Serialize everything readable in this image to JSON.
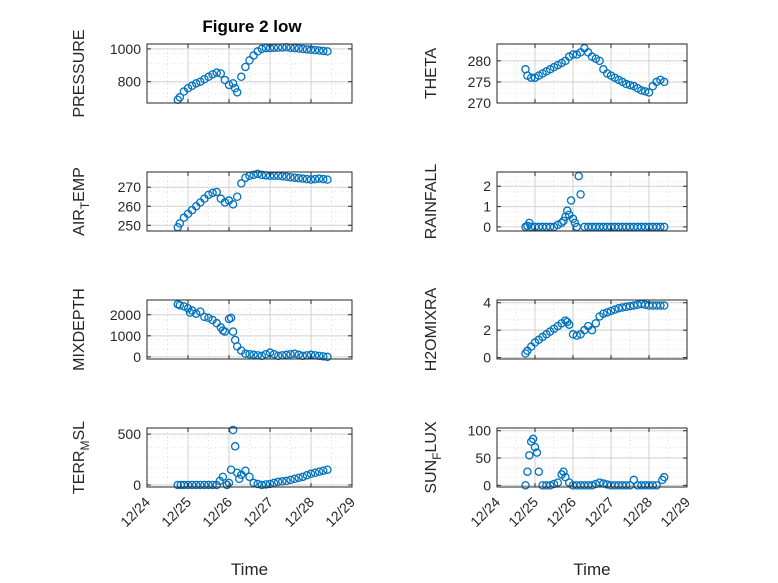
{
  "figure": {
    "title": "Figure 2 low",
    "colors": {
      "marker": "#0072BD",
      "axis": "#262626",
      "grid": "#d0d0d0"
    }
  },
  "chart_data": [
    {
      "type": "scatter",
      "ylabel": "PRESSURE",
      "xlabel": "",
      "ylim": [
        670,
        1030
      ],
      "yticks": [
        800,
        1000
      ],
      "x": [
        24.75,
        24.8,
        24.9,
        25.0,
        25.1,
        25.2,
        25.3,
        25.4,
        25.5,
        25.6,
        25.7,
        25.8,
        25.9,
        26.0,
        26.1,
        26.15,
        26.2,
        26.3,
        26.4,
        26.5,
        26.6,
        26.7,
        26.8,
        26.9,
        27.0,
        27.2,
        27.4,
        27.6,
        27.8,
        28.0,
        28.2,
        28.4
      ],
      "y": [
        690,
        705,
        740,
        760,
        775,
        790,
        800,
        815,
        830,
        845,
        855,
        850,
        810,
        780,
        790,
        760,
        735,
        830,
        890,
        930,
        960,
        985,
        1000,
        1005,
        1005,
        1008,
        1010,
        1005,
        1000,
        995,
        990,
        985
      ],
      "series": [
        {
          "name": "",
          "color": "#0072BD"
        }
      ]
    },
    {
      "type": "scatter",
      "ylabel": "THETA",
      "xlabel": "",
      "ylim": [
        270,
        284
      ],
      "yticks": [
        270,
        275,
        280
      ],
      "x": [
        24.75,
        24.8,
        24.9,
        25.0,
        25.1,
        25.2,
        25.3,
        25.4,
        25.5,
        25.6,
        25.7,
        25.8,
        25.9,
        26.0,
        26.1,
        26.2,
        26.3,
        26.4,
        26.5,
        26.6,
        26.7,
        26.8,
        26.9,
        27.0,
        27.1,
        27.2,
        27.3,
        27.4,
        27.6,
        27.8,
        28.0,
        28.1,
        28.2,
        28.3,
        28.4
      ],
      "y": [
        278,
        276.5,
        276,
        276,
        276.5,
        277,
        277.5,
        278,
        278.5,
        279,
        279.5,
        280,
        281,
        281.5,
        281.5,
        282,
        283,
        282,
        281,
        280.5,
        280,
        278,
        277,
        276.5,
        276,
        275.5,
        275,
        274.5,
        274,
        273,
        272.5,
        274,
        275,
        275.5,
        275
      ],
      "series": [
        {
          "name": "",
          "color": "#0072BD"
        }
      ]
    },
    {
      "type": "scatter",
      "ylabel": "AIR_TEMP",
      "xlabel": "",
      "ylim": [
        247,
        278
      ],
      "yticks": [
        250,
        260,
        270
      ],
      "x": [
        24.75,
        24.8,
        24.9,
        25.0,
        25.1,
        25.2,
        25.3,
        25.4,
        25.5,
        25.6,
        25.7,
        25.8,
        25.9,
        26.0,
        26.1,
        26.2,
        26.3,
        26.4,
        26.5,
        26.6,
        26.7,
        26.8,
        27.0,
        27.2,
        27.4,
        27.6,
        27.8,
        28.0,
        28.2,
        28.4
      ],
      "y": [
        249,
        251,
        254,
        256,
        258,
        260,
        262,
        264,
        266,
        267,
        267.5,
        264,
        262,
        263,
        261,
        265,
        272,
        275,
        276,
        276.5,
        277,
        276.5,
        276,
        276,
        275.5,
        275,
        274.5,
        274,
        274.5,
        274
      ],
      "series": [
        {
          "name": "",
          "color": "#0072BD"
        }
      ]
    },
    {
      "type": "scatter",
      "ylabel": "RAINFALL",
      "xlabel": "",
      "ylim": [
        -0.2,
        2.7
      ],
      "yticks": [
        0,
        1,
        2
      ],
      "x": [
        24.75,
        24.8,
        24.85,
        24.9,
        25.0,
        25.2,
        25.4,
        25.5,
        25.6,
        25.7,
        25.75,
        25.8,
        25.85,
        25.9,
        25.95,
        26.0,
        26.05,
        26.1,
        26.15,
        26.2,
        26.3,
        26.5,
        26.7,
        27.0,
        27.3,
        27.6,
        27.9,
        28.2,
        28.4
      ],
      "y": [
        0,
        0.05,
        0.2,
        0,
        0,
        0,
        0,
        0,
        0.1,
        0.2,
        0.3,
        0.5,
        0.8,
        0.6,
        1.3,
        0.4,
        0.2,
        0,
        2.5,
        1.6,
        0,
        0,
        0,
        0,
        0,
        0,
        0,
        0,
        0
      ],
      "series": [
        {
          "name": "",
          "color": "#0072BD"
        }
      ]
    },
    {
      "type": "scatter",
      "ylabel": "MIXDEPTH",
      "xlabel": "",
      "ylim": [
        -100,
        2700
      ],
      "yticks": [
        0,
        1000,
        2000
      ],
      "x": [
        24.75,
        24.8,
        24.9,
        25.0,
        25.05,
        25.1,
        25.2,
        25.3,
        25.4,
        25.5,
        25.6,
        25.7,
        25.8,
        25.85,
        25.9,
        26.0,
        26.05,
        26.1,
        26.15,
        26.2,
        26.3,
        26.4,
        26.6,
        26.8,
        27.0,
        27.2,
        27.4,
        27.6,
        27.8,
        28.0,
        28.2,
        28.4
      ],
      "y": [
        2500,
        2450,
        2400,
        2300,
        2100,
        2200,
        2050,
        2150,
        1900,
        1850,
        1750,
        1600,
        1400,
        1250,
        1200,
        1800,
        1850,
        1200,
        800,
        500,
        300,
        150,
        100,
        50,
        200,
        50,
        100,
        150,
        50,
        100,
        50,
        0
      ],
      "series": [
        {
          "name": "",
          "color": "#0072BD"
        }
      ]
    },
    {
      "type": "scatter",
      "ylabel": "H2OMIXRA",
      "xlabel": "",
      "ylim": [
        -0.1,
        4.2
      ],
      "yticks": [
        0,
        2,
        4
      ],
      "x": [
        24.75,
        24.8,
        24.9,
        25.0,
        25.1,
        25.2,
        25.3,
        25.4,
        25.5,
        25.6,
        25.7,
        25.8,
        25.85,
        25.9,
        26.0,
        26.1,
        26.2,
        26.3,
        26.4,
        26.5,
        26.6,
        26.7,
        26.8,
        27.0,
        27.2,
        27.4,
        27.6,
        27.8,
        28.0,
        28.2,
        28.4
      ],
      "y": [
        0.3,
        0.5,
        0.8,
        1.1,
        1.3,
        1.5,
        1.7,
        1.9,
        2.1,
        2.3,
        2.5,
        2.7,
        2.6,
        2.4,
        1.7,
        1.6,
        1.7,
        2.0,
        2.3,
        2.0,
        2.5,
        3.0,
        3.2,
        3.4,
        3.6,
        3.7,
        3.8,
        3.9,
        3.8,
        3.8,
        3.8
      ],
      "series": [
        {
          "name": "",
          "color": "#0072BD"
        }
      ]
    },
    {
      "type": "scatter",
      "ylabel": "TERR_MSL",
      "xlabel": "Time",
      "ylim": [
        -20,
        560
      ],
      "yticks": [
        0,
        500
      ],
      "x": [
        24.75,
        24.9,
        25.1,
        25.3,
        25.5,
        25.7,
        25.85,
        25.95,
        26.0,
        26.05,
        26.1,
        26.15,
        26.2,
        26.25,
        26.3,
        26.4,
        26.5,
        26.6,
        26.8,
        27.0,
        27.2,
        27.4,
        27.6,
        27.8,
        28.0,
        28.2,
        28.4
      ],
      "y": [
        0,
        0,
        0,
        0,
        0,
        0,
        80,
        0,
        20,
        150,
        540,
        380,
        120,
        60,
        100,
        140,
        80,
        20,
        0,
        10,
        30,
        40,
        60,
        80,
        110,
        130,
        150
      ],
      "series": [
        {
          "name": "",
          "color": "#0072BD"
        }
      ]
    },
    {
      "type": "scatter",
      "ylabel": "SUN_FLUX",
      "xlabel": "Time",
      "ylim": [
        -3,
        105
      ],
      "yticks": [
        0,
        50,
        100
      ],
      "x": [
        24.75,
        24.8,
        24.85,
        24.9,
        24.95,
        25.0,
        25.05,
        25.1,
        25.2,
        25.4,
        25.6,
        25.7,
        25.75,
        25.8,
        25.9,
        26.0,
        26.2,
        26.5,
        26.7,
        27.0,
        27.2,
        27.5,
        27.6,
        27.7,
        28.0,
        28.2,
        28.35,
        28.4
      ],
      "y": [
        0,
        25,
        55,
        80,
        85,
        70,
        60,
        25,
        0,
        0,
        5,
        20,
        25,
        15,
        5,
        0,
        0,
        0,
        5,
        0,
        0,
        0,
        10,
        0,
        0,
        0,
        10,
        15
      ],
      "series": [
        {
          "name": "",
          "color": "#0072BD"
        }
      ]
    }
  ],
  "x_axis": {
    "xlim": [
      24,
      29
    ],
    "tick_values": [
      24,
      25,
      26,
      27,
      28,
      29
    ],
    "tick_labels": [
      "12/24",
      "12/25",
      "12/26",
      "12/27",
      "12/28",
      "12/29"
    ]
  }
}
